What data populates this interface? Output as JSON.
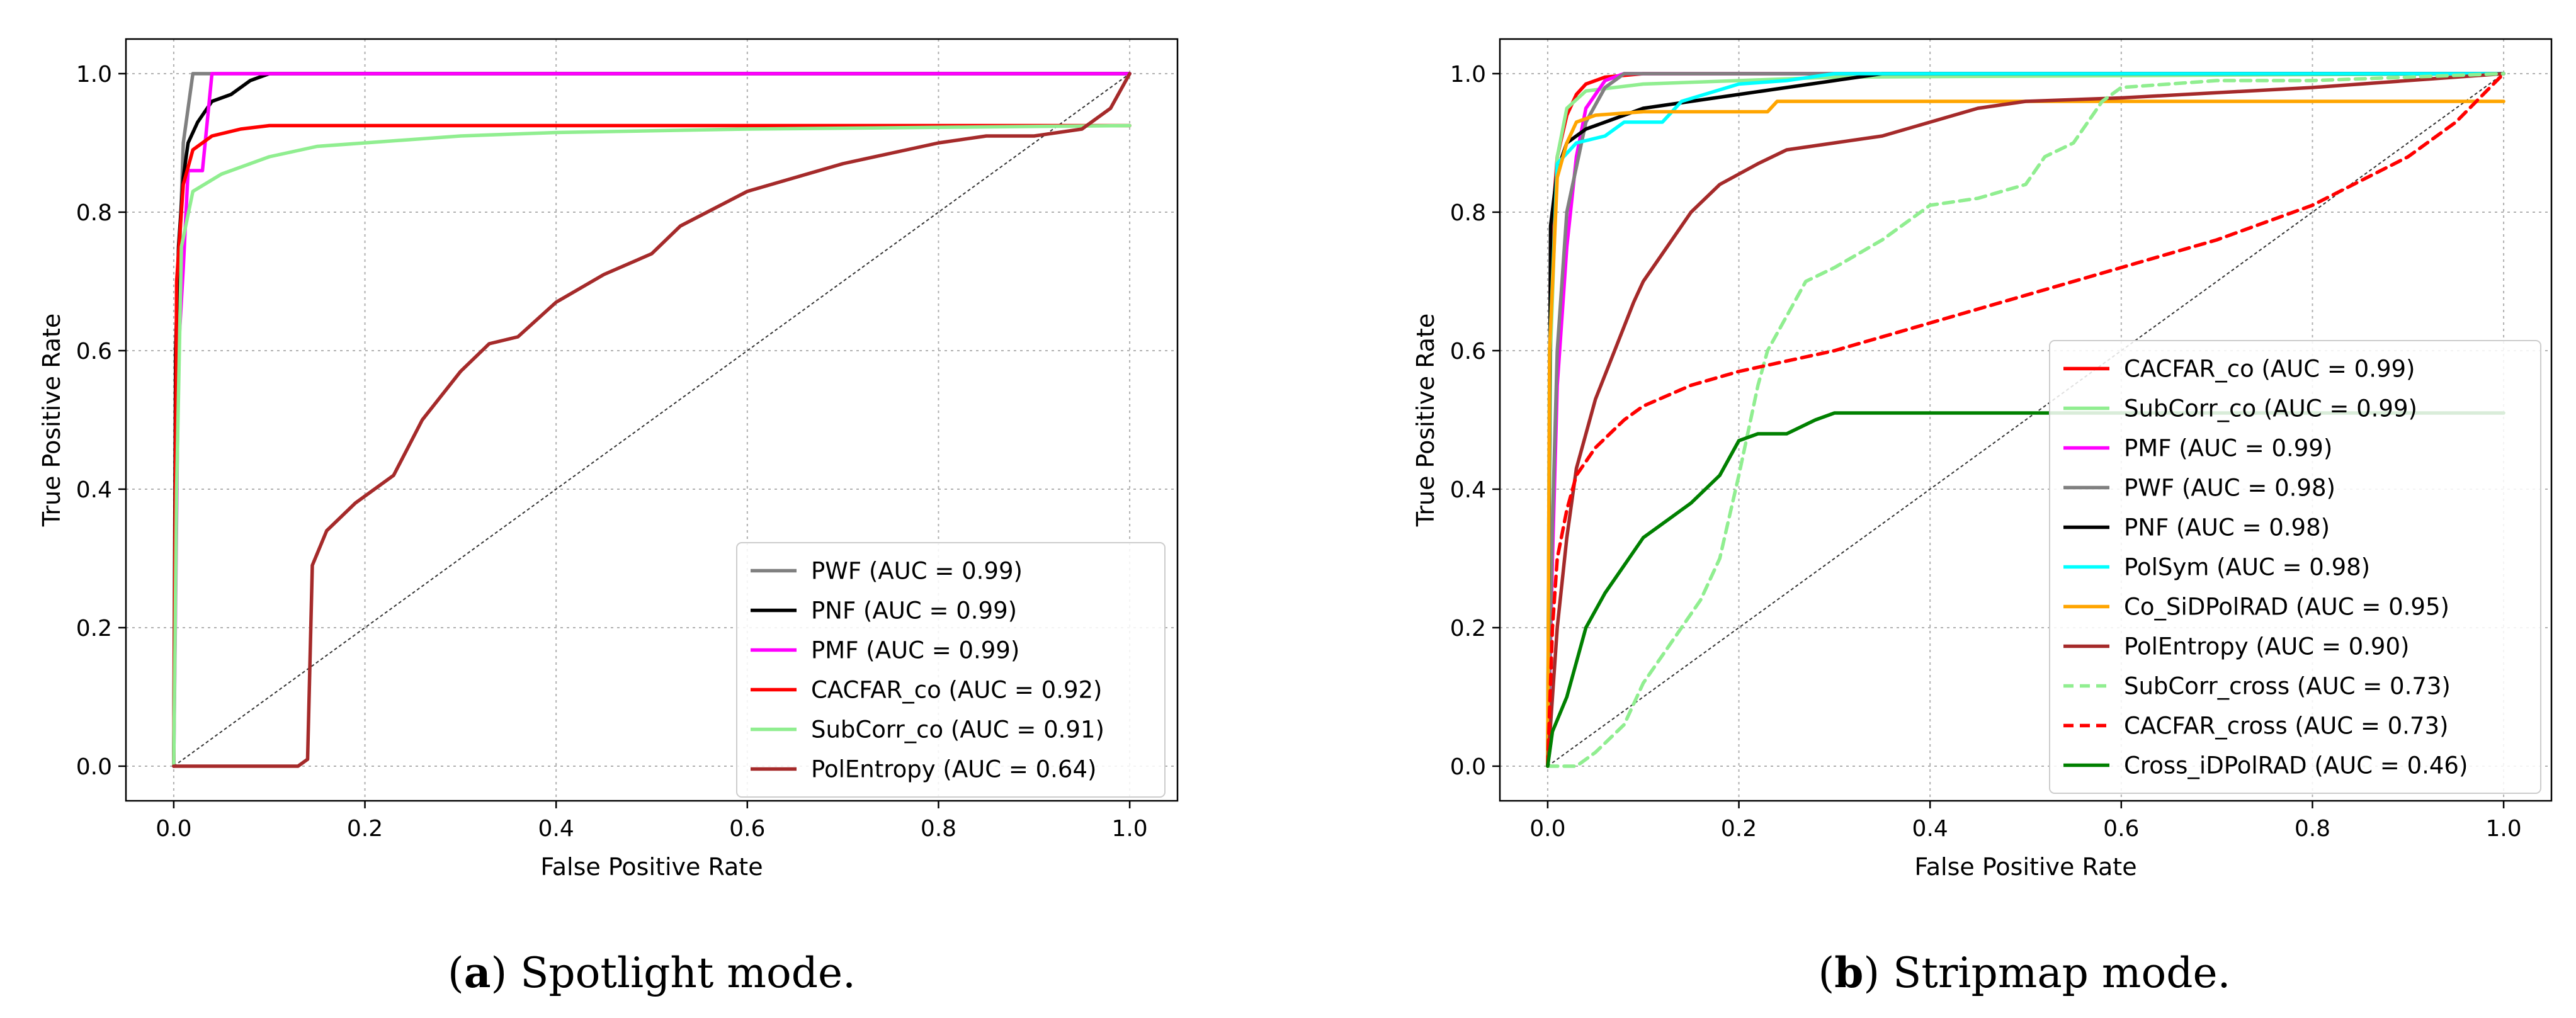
{
  "chart_data": [
    {
      "type": "line",
      "panel": "a",
      "caption": {
        "label": "a",
        "text": "Spotlight mode."
      },
      "xlabel": "False Positive Rate",
      "ylabel": "True Positive Rate",
      "xlim": [
        -0.05,
        1.05
      ],
      "ylim": [
        -0.05,
        1.05
      ],
      "xticks": [
        "0.0",
        "0.2",
        "0.4",
        "0.6",
        "0.8",
        "1.0"
      ],
      "yticks": [
        "0.0",
        "0.2",
        "0.4",
        "0.6",
        "0.8",
        "1.0"
      ],
      "grid": true,
      "legend_position": "lower-right",
      "diagonal": true,
      "series": [
        {
          "name": "PWF (AUC = 0.99)",
          "color": "#808080",
          "dashed": false,
          "points": [
            [
              0,
              0
            ],
            [
              0.002,
              0.4
            ],
            [
              0.005,
              0.7
            ],
            [
              0.01,
              0.9
            ],
            [
              0.02,
              1.0
            ],
            [
              1.0,
              1.0
            ]
          ]
        },
        {
          "name": "PNF (AUC = 0.99)",
          "color": "#000000",
          "dashed": false,
          "points": [
            [
              0,
              0
            ],
            [
              0.002,
              0.6
            ],
            [
              0.005,
              0.75
            ],
            [
              0.01,
              0.85
            ],
            [
              0.015,
              0.9
            ],
            [
              0.025,
              0.93
            ],
            [
              0.04,
              0.96
            ],
            [
              0.06,
              0.97
            ],
            [
              0.08,
              0.99
            ],
            [
              0.1,
              1.0
            ],
            [
              1.0,
              1.0
            ]
          ]
        },
        {
          "name": "PMF (AUC = 0.99)",
          "color": "#ff00ff",
          "dashed": false,
          "points": [
            [
              0,
              0
            ],
            [
              0.005,
              0.6
            ],
            [
              0.01,
              0.72
            ],
            [
              0.015,
              0.86
            ],
            [
              0.03,
              0.86
            ],
            [
              0.04,
              1.0
            ],
            [
              1.0,
              1.0
            ]
          ]
        },
        {
          "name": "CACFAR_co (AUC = 0.92)",
          "color": "#ff0000",
          "dashed": false,
          "points": [
            [
              0,
              0
            ],
            [
              0.003,
              0.7
            ],
            [
              0.01,
              0.84
            ],
            [
              0.02,
              0.89
            ],
            [
              0.04,
              0.91
            ],
            [
              0.07,
              0.92
            ],
            [
              0.1,
              0.925
            ],
            [
              1.0,
              0.925
            ]
          ]
        },
        {
          "name": "SubCorr_co (AUC = 0.91)",
          "color": "#90ee90",
          "dashed": false,
          "points": [
            [
              0,
              0
            ],
            [
              0.003,
              0.4
            ],
            [
              0.008,
              0.75
            ],
            [
              0.02,
              0.83
            ],
            [
              0.05,
              0.855
            ],
            [
              0.1,
              0.88
            ],
            [
              0.15,
              0.895
            ],
            [
              0.2,
              0.9
            ],
            [
              0.3,
              0.91
            ],
            [
              0.4,
              0.915
            ],
            [
              0.6,
              0.92
            ],
            [
              1.0,
              0.925
            ]
          ]
        },
        {
          "name": "PolEntropy (AUC = 0.64)",
          "color": "#a52a2a",
          "dashed": false,
          "points": [
            [
              0,
              0
            ],
            [
              0.13,
              0
            ],
            [
              0.14,
              0.01
            ],
            [
              0.145,
              0.29
            ],
            [
              0.16,
              0.34
            ],
            [
              0.19,
              0.38
            ],
            [
              0.23,
              0.42
            ],
            [
              0.26,
              0.5
            ],
            [
              0.3,
              0.57
            ],
            [
              0.33,
              0.61
            ],
            [
              0.36,
              0.62
            ],
            [
              0.4,
              0.67
            ],
            [
              0.45,
              0.71
            ],
            [
              0.5,
              0.74
            ],
            [
              0.53,
              0.78
            ],
            [
              0.6,
              0.83
            ],
            [
              0.65,
              0.85
            ],
            [
              0.7,
              0.87
            ],
            [
              0.75,
              0.885
            ],
            [
              0.8,
              0.9
            ],
            [
              0.85,
              0.91
            ],
            [
              0.9,
              0.91
            ],
            [
              0.95,
              0.92
            ],
            [
              0.98,
              0.95
            ],
            [
              1.0,
              1.0
            ]
          ]
        }
      ]
    },
    {
      "type": "line",
      "panel": "b",
      "caption": {
        "label": "b",
        "text": "Stripmap mode."
      },
      "xlabel": "False Positive Rate",
      "ylabel": "True Positive Rate",
      "xlim": [
        -0.05,
        1.05
      ],
      "ylim": [
        -0.05,
        1.05
      ],
      "xticks": [
        "0.0",
        "0.2",
        "0.4",
        "0.6",
        "0.8",
        "1.0"
      ],
      "yticks": [
        "0.0",
        "0.2",
        "0.4",
        "0.6",
        "0.8",
        "1.0"
      ],
      "grid": true,
      "legend_position": "lower-right",
      "diagonal": true,
      "series": [
        {
          "name": "CACFAR_co (AUC = 0.99)",
          "color": "#ff0000",
          "dashed": false,
          "points": [
            [
              0,
              0
            ],
            [
              0.003,
              0.75
            ],
            [
              0.01,
              0.88
            ],
            [
              0.02,
              0.94
            ],
            [
              0.03,
              0.97
            ],
            [
              0.04,
              0.985
            ],
            [
              0.06,
              0.995
            ],
            [
              0.1,
              1.0
            ],
            [
              1.0,
              1.0
            ]
          ]
        },
        {
          "name": "SubCorr_co (AUC = 0.99)",
          "color": "#90ee90",
          "dashed": false,
          "points": [
            [
              0,
              0
            ],
            [
              0.003,
              0.6
            ],
            [
              0.01,
              0.88
            ],
            [
              0.02,
              0.95
            ],
            [
              0.04,
              0.975
            ],
            [
              0.1,
              0.985
            ],
            [
              0.2,
              0.99
            ],
            [
              0.3,
              0.995
            ],
            [
              1.0,
              1.0
            ]
          ]
        },
        {
          "name": "PMF (AUC = 0.99)",
          "color": "#ff00ff",
          "dashed": false,
          "points": [
            [
              0,
              0
            ],
            [
              0.005,
              0.3
            ],
            [
              0.01,
              0.55
            ],
            [
              0.02,
              0.75
            ],
            [
              0.03,
              0.88
            ],
            [
              0.04,
              0.95
            ],
            [
              0.06,
              0.99
            ],
            [
              0.08,
              1.0
            ],
            [
              1.0,
              1.0
            ]
          ]
        },
        {
          "name": "PWF (AUC = 0.98)",
          "color": "#808080",
          "dashed": false,
          "points": [
            [
              0,
              0
            ],
            [
              0.005,
              0.35
            ],
            [
              0.01,
              0.6
            ],
            [
              0.02,
              0.8
            ],
            [
              0.04,
              0.93
            ],
            [
              0.06,
              0.98
            ],
            [
              0.08,
              1.0
            ],
            [
              1.0,
              1.0
            ]
          ]
        },
        {
          "name": "PNF (AUC = 0.98)",
          "color": "#000000",
          "dashed": false,
          "points": [
            [
              0,
              0
            ],
            [
              0.003,
              0.78
            ],
            [
              0.01,
              0.86
            ],
            [
              0.02,
              0.9
            ],
            [
              0.04,
              0.92
            ],
            [
              0.06,
              0.93
            ],
            [
              0.1,
              0.95
            ],
            [
              0.15,
              0.96
            ],
            [
              0.2,
              0.97
            ],
            [
              0.25,
              0.98
            ],
            [
              0.3,
              0.99
            ],
            [
              0.35,
              1.0
            ],
            [
              1.0,
              1.0
            ]
          ]
        },
        {
          "name": "PolSym (AUC = 0.98)",
          "color": "#00ffff",
          "dashed": false,
          "points": [
            [
              0,
              0
            ],
            [
              0.002,
              0.6
            ],
            [
              0.01,
              0.87
            ],
            [
              0.03,
              0.9
            ],
            [
              0.06,
              0.91
            ],
            [
              0.08,
              0.93
            ],
            [
              0.12,
              0.93
            ],
            [
              0.14,
              0.96
            ],
            [
              0.2,
              0.985
            ],
            [
              0.25,
              0.99
            ],
            [
              0.3,
              1.0
            ],
            [
              1.0,
              1.0
            ]
          ]
        },
        {
          "name": "Co_SiDPolRAD (AUC = 0.95)",
          "color": "#ffa500",
          "dashed": false,
          "points": [
            [
              0,
              0
            ],
            [
              0.002,
              0.6
            ],
            [
              0.01,
              0.85
            ],
            [
              0.02,
              0.9
            ],
            [
              0.03,
              0.93
            ],
            [
              0.05,
              0.94
            ],
            [
              0.1,
              0.945
            ],
            [
              0.23,
              0.945
            ],
            [
              0.24,
              0.96
            ],
            [
              1.0,
              0.96
            ]
          ]
        },
        {
          "name": "PolEntropy (AUC = 0.90)",
          "color": "#a52a2a",
          "dashed": false,
          "points": [
            [
              0,
              0
            ],
            [
              0.005,
              0.1
            ],
            [
              0.01,
              0.2
            ],
            [
              0.02,
              0.33
            ],
            [
              0.03,
              0.43
            ],
            [
              0.05,
              0.53
            ],
            [
              0.07,
              0.6
            ],
            [
              0.09,
              0.67
            ],
            [
              0.1,
              0.7
            ],
            [
              0.12,
              0.74
            ],
            [
              0.15,
              0.8
            ],
            [
              0.18,
              0.84
            ],
            [
              0.22,
              0.87
            ],
            [
              0.25,
              0.89
            ],
            [
              0.3,
              0.9
            ],
            [
              0.35,
              0.91
            ],
            [
              0.4,
              0.93
            ],
            [
              0.45,
              0.95
            ],
            [
              0.5,
              0.96
            ],
            [
              0.6,
              0.965
            ],
            [
              0.8,
              0.98
            ],
            [
              1.0,
              1.0
            ]
          ]
        },
        {
          "name": "SubCorr_cross (AUC = 0.73)",
          "color": "#90ee90",
          "dashed": true,
          "points": [
            [
              0,
              0
            ],
            [
              0.03,
              0
            ],
            [
              0.05,
              0.02
            ],
            [
              0.08,
              0.06
            ],
            [
              0.1,
              0.12
            ],
            [
              0.13,
              0.18
            ],
            [
              0.16,
              0.24
            ],
            [
              0.18,
              0.3
            ],
            [
              0.2,
              0.42
            ],
            [
              0.22,
              0.55
            ],
            [
              0.23,
              0.6
            ],
            [
              0.25,
              0.65
            ],
            [
              0.27,
              0.7
            ],
            [
              0.3,
              0.72
            ],
            [
              0.35,
              0.76
            ],
            [
              0.4,
              0.81
            ],
            [
              0.45,
              0.82
            ],
            [
              0.5,
              0.84
            ],
            [
              0.52,
              0.88
            ],
            [
              0.55,
              0.9
            ],
            [
              0.58,
              0.96
            ],
            [
              0.6,
              0.98
            ],
            [
              0.7,
              0.99
            ],
            [
              0.8,
              0.99
            ],
            [
              0.9,
              0.995
            ],
            [
              1.0,
              1.0
            ]
          ]
        },
        {
          "name": "CACFAR_cross (AUC = 0.73)",
          "color": "#ff0000",
          "dashed": true,
          "points": [
            [
              0,
              0
            ],
            [
              0.005,
              0.2
            ],
            [
              0.01,
              0.3
            ],
            [
              0.02,
              0.37
            ],
            [
              0.03,
              0.42
            ],
            [
              0.05,
              0.46
            ],
            [
              0.08,
              0.5
            ],
            [
              0.1,
              0.52
            ],
            [
              0.15,
              0.55
            ],
            [
              0.2,
              0.57
            ],
            [
              0.3,
              0.6
            ],
            [
              0.4,
              0.64
            ],
            [
              0.5,
              0.68
            ],
            [
              0.6,
              0.72
            ],
            [
              0.7,
              0.76
            ],
            [
              0.8,
              0.81
            ],
            [
              0.9,
              0.88
            ],
            [
              0.95,
              0.93
            ],
            [
              1.0,
              1.0
            ]
          ]
        },
        {
          "name": "Cross_iDPolRAD (AUC = 0.46)",
          "color": "#008000",
          "dashed": false,
          "points": [
            [
              0,
              0
            ],
            [
              0.005,
              0.05
            ],
            [
              0.02,
              0.1
            ],
            [
              0.04,
              0.2
            ],
            [
              0.06,
              0.25
            ],
            [
              0.08,
              0.29
            ],
            [
              0.1,
              0.33
            ],
            [
              0.13,
              0.36
            ],
            [
              0.15,
              0.38
            ],
            [
              0.18,
              0.42
            ],
            [
              0.2,
              0.47
            ],
            [
              0.22,
              0.48
            ],
            [
              0.25,
              0.48
            ],
            [
              0.28,
              0.5
            ],
            [
              0.3,
              0.51
            ],
            [
              1.0,
              0.51
            ]
          ]
        }
      ]
    }
  ]
}
